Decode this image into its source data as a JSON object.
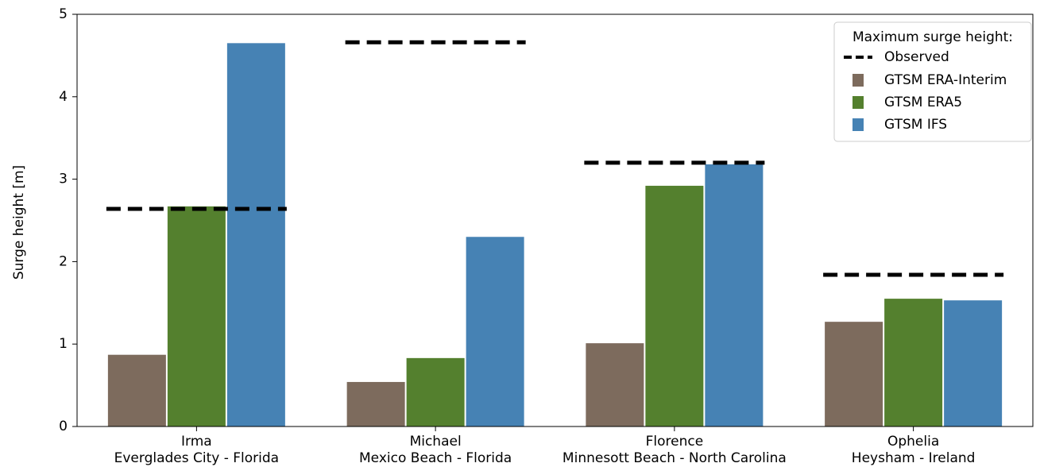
{
  "chart_data": {
    "type": "bar",
    "title": "",
    "xlabel": "",
    "ylabel": "Surge height [m]",
    "ylim": [
      0,
      5
    ],
    "yticks": [
      0,
      1,
      2,
      3,
      4,
      5
    ],
    "grid": false,
    "categories": [
      {
        "name": "Irma",
        "location": "Everglades City - Florida"
      },
      {
        "name": "Michael",
        "location": "Mexico Beach - Florida"
      },
      {
        "name": "Florence",
        "location": "Minnesott Beach - North Carolina"
      },
      {
        "name": "Ophelia",
        "location": "Heysham - Ireland"
      }
    ],
    "series": [
      {
        "name": "GTSM ERA-Interim",
        "color": "#7d6b5d",
        "values": [
          0.87,
          0.54,
          1.01,
          1.27
        ]
      },
      {
        "name": "GTSM ERA5",
        "color": "#54802e",
        "values": [
          2.67,
          0.83,
          2.92,
          1.55
        ]
      },
      {
        "name": "GTSM IFS",
        "color": "#4682b4",
        "values": [
          4.65,
          2.3,
          3.18,
          1.53
        ]
      }
    ],
    "observed": {
      "name": "Observed",
      "values": [
        2.64,
        4.66,
        3.2,
        1.84
      ]
    },
    "legend": {
      "title": "Maximum surge height:",
      "placement": "top-right"
    }
  }
}
